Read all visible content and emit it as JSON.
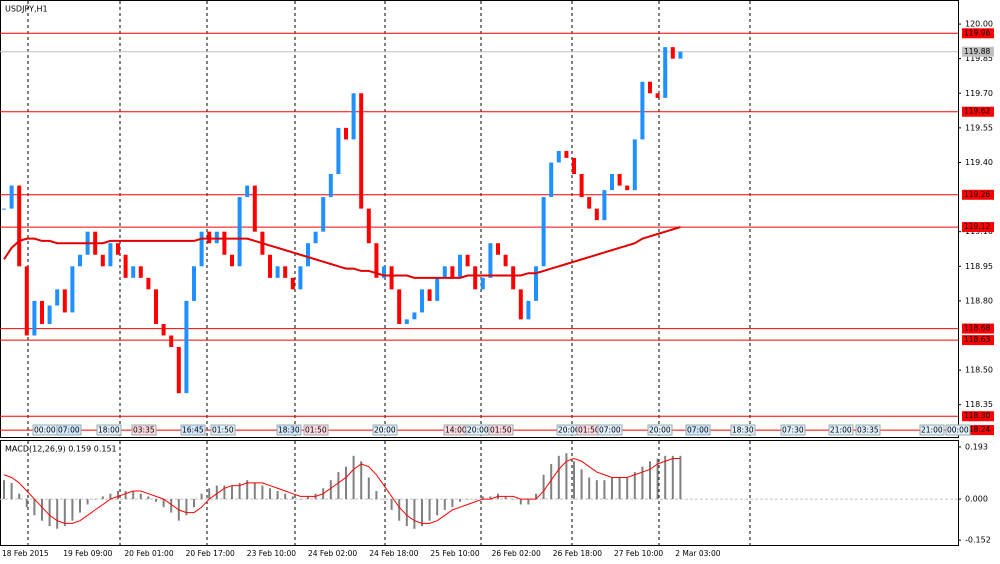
{
  "chart_data": [
    {
      "type": "candlestick",
      "title": "USDJPY,H1",
      "bull_color": "#1e90ff",
      "bear_color": "#ff0000",
      "close": [
        119.2,
        119.3,
        118.95,
        118.65,
        118.8,
        118.7,
        118.78,
        118.85,
        118.75,
        118.95,
        119.0,
        119.1,
        119.0,
        118.95,
        119.05,
        119.0,
        118.9,
        118.95,
        118.9,
        118.85,
        118.7,
        118.65,
        118.6,
        118.4,
        118.8,
        118.95,
        119.1,
        119.05,
        119.1,
        119.0,
        118.95,
        119.25,
        119.3,
        119.1,
        119.0,
        118.9,
        118.95,
        118.9,
        118.85,
        118.95,
        119.05,
        119.1,
        119.25,
        119.35,
        119.55,
        119.5,
        119.7,
        119.2,
        119.05,
        118.9,
        118.95,
        118.85,
        118.7,
        118.72,
        118.75,
        118.85,
        118.8,
        118.9,
        118.95,
        118.9,
        119.0,
        118.95,
        118.85,
        118.9,
        119.05,
        119.0,
        118.95,
        118.85,
        118.72,
        118.8,
        118.95,
        119.25,
        119.4,
        119.45,
        119.42,
        119.35,
        119.25,
        119.2,
        119.15,
        119.28,
        119.35,
        119.3,
        119.28,
        119.5,
        119.75,
        119.7,
        119.68,
        119.9,
        119.85,
        119.88
      ],
      "ma": {
        "color": "#e00000",
        "values": [
          118.98,
          119.03,
          119.06,
          119.07,
          119.07,
          119.06,
          119.06,
          119.05,
          119.05,
          119.05,
          119.05,
          119.05,
          119.05,
          119.05,
          119.06,
          119.06,
          119.06,
          119.06,
          119.06,
          119.06,
          119.06,
          119.06,
          119.06,
          119.06,
          119.06,
          119.06,
          119.07,
          119.07,
          119.07,
          119.07,
          119.07,
          119.07,
          119.07,
          119.06,
          119.05,
          119.04,
          119.03,
          119.02,
          119.01,
          119.0,
          118.99,
          118.98,
          118.97,
          118.96,
          118.95,
          118.94,
          118.94,
          118.93,
          118.93,
          118.92,
          118.91,
          118.91,
          118.91,
          118.91,
          118.9,
          118.9,
          118.9,
          118.9,
          118.9,
          118.9,
          118.9,
          118.91,
          118.91,
          118.91,
          118.91,
          118.91,
          118.91,
          118.91,
          118.91,
          118.92,
          118.92,
          118.93,
          118.94,
          118.95,
          118.96,
          118.97,
          118.98,
          118.99,
          119.0,
          119.01,
          119.02,
          119.03,
          119.04,
          119.05,
          119.07,
          119.08,
          119.09,
          119.1,
          119.11,
          119.12
        ]
      },
      "ylim": [
        118.21,
        120.1
      ],
      "yticks": [
        {
          "value": 120,
          "label": "120.00"
        },
        119.85,
        {
          "value": 119.7,
          "label": "119.70"
        },
        119.55,
        {
          "value": 119.4,
          "label": "119.40"
        },
        {
          "value": 119.1,
          "label": "119.10"
        },
        118.95,
        {
          "value": 118.8,
          "label": "118.80"
        },
        {
          "value": 118.5,
          "label": "118.50"
        },
        118.35
      ],
      "levels": [
        119.96,
        119.62,
        119.26,
        119.12,
        118.68,
        118.63,
        {
          "value": 118.3,
          "label": "118.30"
        },
        118.24
      ],
      "level_color": "#ff0000",
      "current_price": 119.88,
      "time_markers": [
        "00:00",
        "07:00",
        "18:00",
        "03:35",
        "16:45",
        "01:50",
        "18:30",
        "01:50",
        "20:00",
        "14:00",
        "20:00",
        "01:50",
        "20:00",
        "01:50",
        "07:00",
        "20:00",
        "07:00",
        "18:30",
        "07:30",
        "21:00",
        "03:35",
        "21:00",
        "00:00"
      ],
      "time_labels": [
        "18 Feb 2015",
        "19 Feb 09:00",
        "20 Feb 01:00",
        "20 Feb 17:00",
        "23 Feb 10:00",
        "24 Feb 02:00",
        "24 Feb 18:00",
        "25 Feb 10:00",
        "26 Feb 02:00",
        "26 Feb 18:00",
        "27 Feb 10:00",
        "2 Mar 03:00"
      ]
    },
    {
      "type": "macd",
      "title": "MACD(12,26,9) 0.159 0.151",
      "series": [
        {
          "color": "#808080",
          "values": [
            0.07,
            0.06,
            0.02,
            -0.03,
            -0.06,
            -0.08,
            -0.1,
            -0.11,
            -0.1,
            -0.08,
            -0.05,
            -0.02,
            0.0,
            0.01,
            0.02,
            0.03,
            0.03,
            0.03,
            0.02,
            0.01,
            -0.01,
            -0.03,
            -0.05,
            -0.08,
            -0.06,
            -0.03,
            0.02,
            0.04,
            0.05,
            0.05,
            0.05,
            0.06,
            0.07,
            0.06,
            0.05,
            0.04,
            0.03,
            0.02,
            0.01,
            0.0,
            0.01,
            0.02,
            0.04,
            0.07,
            0.1,
            0.12,
            0.16,
            0.14,
            0.08,
            0.03,
            0.0,
            -0.04,
            -0.08,
            -0.1,
            -0.11,
            -0.1,
            -0.08,
            -0.06,
            -0.04,
            -0.03,
            -0.01,
            0.0,
            0.0,
            0.01,
            0.01,
            0.02,
            0.01,
            0.0,
            -0.02,
            -0.02,
            0.02,
            0.09,
            0.13,
            0.16,
            0.17,
            0.14,
            0.11,
            0.08,
            0.07,
            0.07,
            0.08,
            0.08,
            0.08,
            0.1,
            0.12,
            0.14,
            0.15,
            0.16,
            0.16,
            0.16
          ]
        },
        {
          "color": "#ff0000",
          "values": [
            0.09,
            0.08,
            0.06,
            0.03,
            0.0,
            -0.03,
            -0.06,
            -0.08,
            -0.09,
            -0.09,
            -0.08,
            -0.06,
            -0.04,
            -0.02,
            0.0,
            0.01,
            0.02,
            0.03,
            0.03,
            0.02,
            0.01,
            0.0,
            -0.02,
            -0.04,
            -0.05,
            -0.05,
            -0.03,
            0.0,
            0.02,
            0.04,
            0.05,
            0.05,
            0.06,
            0.06,
            0.06,
            0.05,
            0.04,
            0.03,
            0.02,
            0.01,
            0.01,
            0.01,
            0.02,
            0.04,
            0.06,
            0.08,
            0.11,
            0.13,
            0.12,
            0.09,
            0.05,
            0.01,
            -0.03,
            -0.06,
            -0.08,
            -0.09,
            -0.09,
            -0.08,
            -0.06,
            -0.04,
            -0.03,
            -0.02,
            -0.01,
            0.0,
            0.0,
            0.01,
            0.01,
            0.01,
            0.0,
            0.0,
            0.0,
            0.03,
            0.07,
            0.11,
            0.14,
            0.15,
            0.14,
            0.12,
            0.1,
            0.09,
            0.08,
            0.08,
            0.08,
            0.09,
            0.1,
            0.11,
            0.13,
            0.14,
            0.15,
            0.15
          ]
        }
      ],
      "ylim": [
        -0.17,
        0.215
      ],
      "yticks": [
        0.193,
        {
          "value": 0,
          "label": "0.000"
        },
        -0.152
      ]
    }
  ]
}
